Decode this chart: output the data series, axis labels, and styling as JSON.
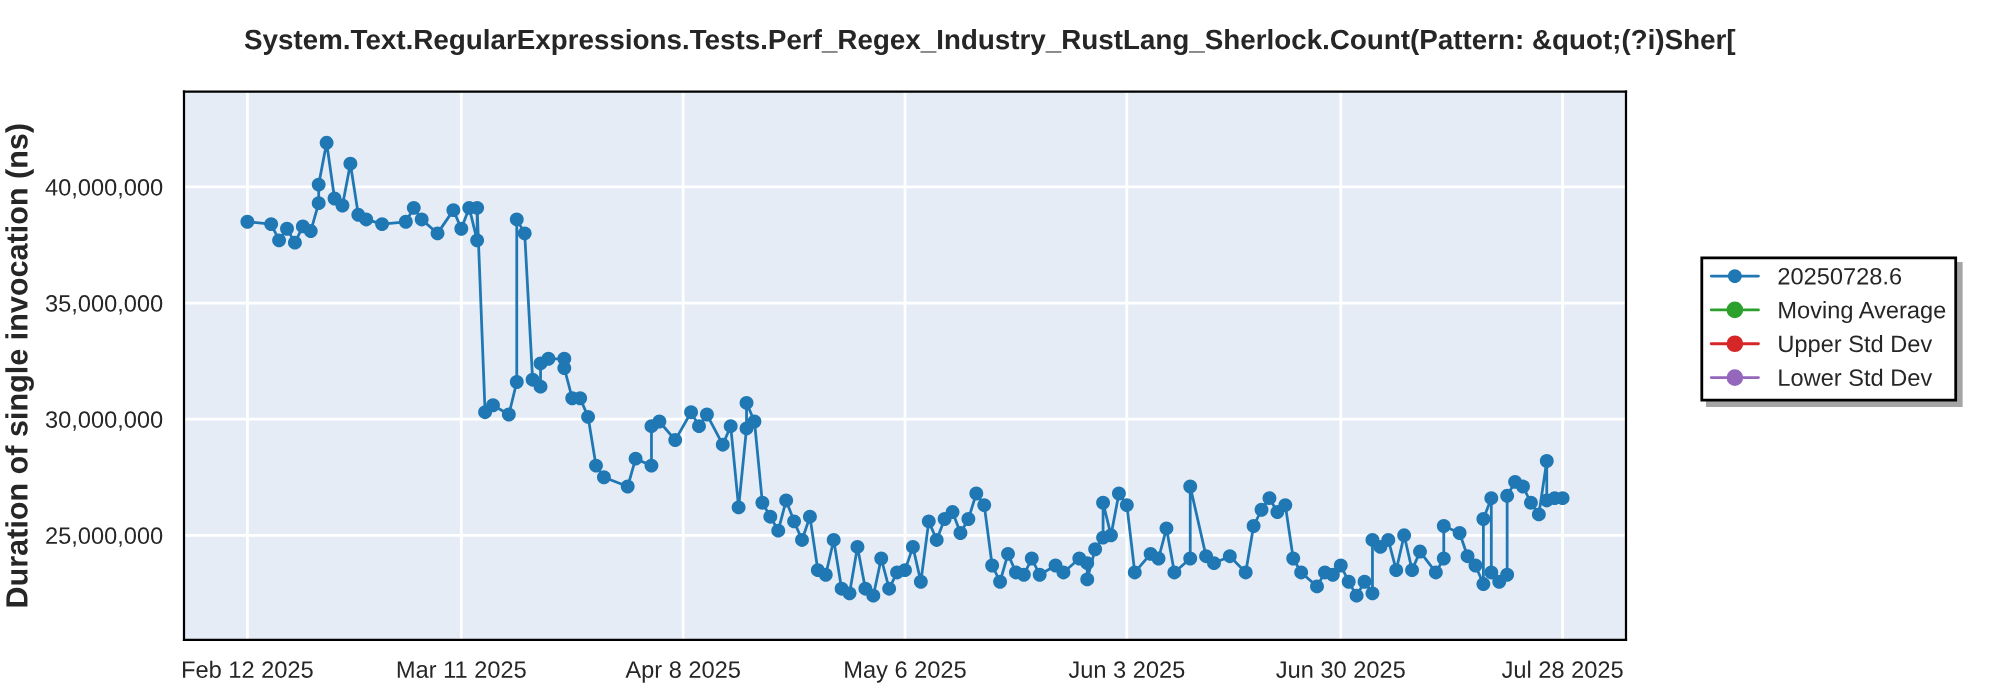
{
  "chart_data": {
    "type": "line",
    "title": "System.Text.RegularExpressions.Tests.Perf_Regex_Industry_RustLang_Sherlock.Count(Pattern: &quot;(?i)Sher[",
    "ylabel": "Duration of single invocation (ns)",
    "x": [
      "2025-02-12",
      "2025-02-15",
      "2025-02-16",
      "2025-02-17",
      "2025-02-18",
      "2025-02-19",
      "2025-02-20",
      "2025-02-21",
      "2025-02-21",
      "2025-02-22",
      "2025-02-23",
      "2025-02-24",
      "2025-02-25",
      "2025-02-26",
      "2025-02-27",
      "2025-03-01",
      "2025-03-04",
      "2025-03-05",
      "2025-03-06",
      "2025-03-08",
      "2025-03-10",
      "2025-03-11",
      "2025-03-12",
      "2025-03-13",
      "2025-03-13",
      "2025-03-14",
      "2025-03-15",
      "2025-03-17",
      "2025-03-18",
      "2025-03-18",
      "2025-03-19",
      "2025-03-20",
      "2025-03-21",
      "2025-03-21",
      "2025-03-22",
      "2025-03-24",
      "2025-03-24",
      "2025-03-25",
      "2025-03-26",
      "2025-03-27",
      "2025-03-28",
      "2025-03-29",
      "2025-04-01",
      "2025-04-02",
      "2025-04-04",
      "2025-04-04",
      "2025-04-05",
      "2025-04-07",
      "2025-04-09",
      "2025-04-10",
      "2025-04-11",
      "2025-04-13",
      "2025-04-14",
      "2025-04-15",
      "2025-04-16",
      "2025-04-16",
      "2025-04-17",
      "2025-04-18",
      "2025-04-19",
      "2025-04-20",
      "2025-04-21",
      "2025-04-22",
      "2025-04-23",
      "2025-04-24",
      "2025-04-25",
      "2025-04-26",
      "2025-04-27",
      "2025-04-28",
      "2025-04-29",
      "2025-04-30",
      "2025-05-01",
      "2025-05-02",
      "2025-05-03",
      "2025-05-04",
      "2025-05-05",
      "2025-05-06",
      "2025-05-07",
      "2025-05-08",
      "2025-05-09",
      "2025-05-10",
      "2025-05-11",
      "2025-05-12",
      "2025-05-13",
      "2025-05-14",
      "2025-05-15",
      "2025-05-16",
      "2025-05-17",
      "2025-05-18",
      "2025-05-19",
      "2025-05-20",
      "2025-05-21",
      "2025-05-22",
      "2025-05-23",
      "2025-05-25",
      "2025-05-26",
      "2025-05-28",
      "2025-05-29",
      "2025-05-29",
      "2025-05-30",
      "2025-05-31",
      "2025-05-31",
      "2025-06-01",
      "2025-06-02",
      "2025-06-03",
      "2025-06-04",
      "2025-06-06",
      "2025-06-07",
      "2025-06-08",
      "2025-06-09",
      "2025-06-11",
      "2025-06-11",
      "2025-06-13",
      "2025-06-14",
      "2025-06-16",
      "2025-06-18",
      "2025-06-19",
      "2025-06-20",
      "2025-06-21",
      "2025-06-22",
      "2025-06-23",
      "2025-06-24",
      "2025-06-25",
      "2025-06-27",
      "2025-06-28",
      "2025-06-29",
      "2025-06-30",
      "2025-07-01",
      "2025-07-02",
      "2025-07-03",
      "2025-07-04",
      "2025-07-04",
      "2025-07-05",
      "2025-07-06",
      "2025-07-07",
      "2025-07-08",
      "2025-07-09",
      "2025-07-10",
      "2025-07-12",
      "2025-07-13",
      "2025-07-13",
      "2025-07-15",
      "2025-07-16",
      "2025-07-17",
      "2025-07-18",
      "2025-07-18",
      "2025-07-19",
      "2025-07-19",
      "2025-07-20",
      "2025-07-21",
      "2025-07-21",
      "2025-07-22",
      "2025-07-23",
      "2025-07-24",
      "2025-07-25",
      "2025-07-26",
      "2025-07-26",
      "2025-07-27",
      "2025-07-28"
    ],
    "series": [
      {
        "name": "20250728.6",
        "color": "#1f77b4",
        "values": [
          38500000,
          38400000,
          37700000,
          38200000,
          37600000,
          38300000,
          38100000,
          39300000,
          40100000,
          41900000,
          39500000,
          39200000,
          41000000,
          38800000,
          38600000,
          38400000,
          38500000,
          39100000,
          38600000,
          38000000,
          39000000,
          38200000,
          39100000,
          37700000,
          39100000,
          30300000,
          30600000,
          30200000,
          31600000,
          38600000,
          38000000,
          31700000,
          31400000,
          32400000,
          32600000,
          32600000,
          32200000,
          30900000,
          30900000,
          30100000,
          28000000,
          27500000,
          27100000,
          28300000,
          28000000,
          29700000,
          29900000,
          29100000,
          30300000,
          29700000,
          30200000,
          28900000,
          29700000,
          26200000,
          29600000,
          30700000,
          29900000,
          26400000,
          25800000,
          25200000,
          26500000,
          25600000,
          24800000,
          25800000,
          23500000,
          23300000,
          24800000,
          22700000,
          22500000,
          24500000,
          22700000,
          22400000,
          24000000,
          22700000,
          23400000,
          23500000,
          24500000,
          23000000,
          25600000,
          24800000,
          25700000,
          26000000,
          25100000,
          25700000,
          26800000,
          26300000,
          23700000,
          23000000,
          24200000,
          23400000,
          23300000,
          24000000,
          23300000,
          23700000,
          23400000,
          24000000,
          23800000,
          23100000,
          24400000,
          24900000,
          26400000,
          25000000,
          26800000,
          26300000,
          23400000,
          24200000,
          24000000,
          25300000,
          23400000,
          24000000,
          27100000,
          24100000,
          23800000,
          24100000,
          23400000,
          25400000,
          26100000,
          26600000,
          26000000,
          26300000,
          24000000,
          23400000,
          22800000,
          23400000,
          23300000,
          23700000,
          23000000,
          22400000,
          23000000,
          22500000,
          24800000,
          24500000,
          24800000,
          23500000,
          25000000,
          23500000,
          24300000,
          23400000,
          24000000,
          25400000,
          25100000,
          24100000,
          23700000,
          22900000,
          25700000,
          26600000,
          23400000,
          23000000,
          23300000,
          26700000,
          27300000,
          27100000,
          26400000,
          25900000,
          28200000,
          26500000,
          26600000,
          26600000
        ]
      },
      {
        "name": "Moving Average",
        "color": "#2ca02c",
        "values": [
          null,
          null,
          null,
          null,
          null,
          null,
          null,
          null,
          null,
          null,
          null,
          null,
          null,
          null,
          null,
          null,
          null,
          null,
          null,
          null,
          null,
          null,
          null,
          null,
          null,
          null,
          null,
          null,
          null,
          null,
          null,
          null,
          null,
          null,
          null,
          null,
          null,
          null,
          null,
          null,
          null,
          null,
          null,
          null,
          null,
          null,
          null,
          null,
          null,
          null,
          null,
          null,
          null,
          null,
          null,
          null,
          null,
          null,
          null,
          null,
          null,
          null,
          null,
          null,
          null,
          null,
          null,
          null,
          null,
          null,
          null,
          null,
          null,
          null,
          null,
          null,
          null,
          null,
          null,
          null,
          null,
          null,
          null,
          null,
          null,
          null,
          null,
          null,
          null,
          null,
          null,
          null,
          null,
          null,
          null,
          null,
          null,
          null,
          null,
          null,
          null,
          null,
          null,
          null,
          null,
          null,
          null,
          null,
          null,
          null,
          null,
          null,
          null,
          null,
          null,
          null,
          null,
          null,
          null,
          null,
          null,
          null,
          null,
          null,
          null,
          null,
          null,
          null,
          null,
          null,
          null,
          null,
          null,
          null,
          null,
          null,
          null,
          null,
          null,
          null,
          null,
          null,
          null,
          null,
          null,
          null,
          null,
          null,
          null,
          null,
          null,
          null,
          null,
          null,
          null,
          null,
          null,
          null
        ]
      },
      {
        "name": "Upper Std Dev",
        "color": "#d62728",
        "values": [
          null,
          null,
          null,
          null,
          null,
          null,
          null,
          null,
          null,
          null,
          null,
          null,
          null,
          null,
          null,
          null,
          null,
          null,
          null,
          null,
          null,
          null,
          null,
          null,
          null,
          null,
          null,
          null,
          null,
          null,
          null,
          null,
          null,
          null,
          null,
          null,
          null,
          null,
          null,
          null,
          null,
          null,
          null,
          null,
          null,
          null,
          null,
          null,
          null,
          null,
          null,
          null,
          null,
          null,
          null,
          null,
          null,
          null,
          null,
          null,
          null,
          null,
          null,
          null,
          null,
          null,
          null,
          null,
          null,
          null,
          null,
          null,
          null,
          null,
          null,
          null,
          null,
          null,
          null,
          null,
          null,
          null,
          null,
          null,
          null,
          null,
          null,
          null,
          null,
          null,
          null,
          null,
          null,
          null,
          null,
          null,
          null,
          null,
          null,
          null,
          null,
          null,
          null,
          null,
          null,
          null,
          null,
          null,
          null,
          null,
          null,
          null,
          null,
          null,
          null,
          null,
          null,
          null,
          null,
          null,
          null,
          null,
          null,
          null,
          null,
          null,
          null,
          null,
          null,
          null,
          null,
          null,
          null,
          null,
          null,
          null,
          null,
          null,
          null,
          null,
          null,
          null,
          null,
          null,
          null,
          null,
          null,
          null,
          null,
          null,
          null,
          null,
          null,
          null,
          null,
          null,
          null,
          null
        ]
      },
      {
        "name": "Lower Std Dev",
        "color": "#9467bd",
        "values": [
          null,
          null,
          null,
          null,
          null,
          null,
          null,
          null,
          null,
          null,
          null,
          null,
          null,
          null,
          null,
          null,
          null,
          null,
          null,
          null,
          null,
          null,
          null,
          null,
          null,
          null,
          null,
          null,
          null,
          null,
          null,
          null,
          null,
          null,
          null,
          null,
          null,
          null,
          null,
          null,
          null,
          null,
          null,
          null,
          null,
          null,
          null,
          null,
          null,
          null,
          null,
          null,
          null,
          null,
          null,
          null,
          null,
          null,
          null,
          null,
          null,
          null,
          null,
          null,
          null,
          null,
          null,
          null,
          null,
          null,
          null,
          null,
          null,
          null,
          null,
          null,
          null,
          null,
          null,
          null,
          null,
          null,
          null,
          null,
          null,
          null,
          null,
          null,
          null,
          null,
          null,
          null,
          null,
          null,
          null,
          null,
          null,
          null,
          null,
          null,
          null,
          null,
          null,
          null,
          null,
          null,
          null,
          null,
          null,
          null,
          null,
          null,
          null,
          null,
          null,
          null,
          null,
          null,
          null,
          null,
          null,
          null,
          null,
          null,
          null,
          null,
          null,
          null,
          null,
          null,
          null,
          null,
          null,
          null,
          null,
          null,
          null,
          null,
          null,
          null,
          null,
          null,
          null,
          null,
          null,
          null,
          null,
          null,
          null,
          null,
          null,
          null,
          null,
          null,
          null,
          null,
          null,
          null
        ]
      }
    ],
    "xlim": [
      "2025-02-04",
      "2025-08-05"
    ],
    "xticks": [
      {
        "value": "2025-02-12",
        "label": "Feb 12 2025"
      },
      {
        "value": "2025-03-11",
        "label": "Mar 11 2025"
      },
      {
        "value": "2025-04-08",
        "label": "Apr 8 2025"
      },
      {
        "value": "2025-05-06",
        "label": "May 6 2025"
      },
      {
        "value": "2025-06-03",
        "label": "Jun 3 2025"
      },
      {
        "value": "2025-06-30",
        "label": "Jun 30 2025"
      },
      {
        "value": "2025-07-28",
        "label": "Jul 28 2025"
      }
    ],
    "ylim": [
      20500000,
      44100000
    ],
    "yticks": [
      {
        "value": 25000000,
        "label": "25,000,000"
      },
      {
        "value": 30000000,
        "label": "30,000,000"
      },
      {
        "value": 35000000,
        "label": "35,000,000"
      },
      {
        "value": 40000000,
        "label": "40,000,000"
      }
    ],
    "grid": true,
    "legend": "right",
    "marker": "circle",
    "line_style": "solid"
  }
}
